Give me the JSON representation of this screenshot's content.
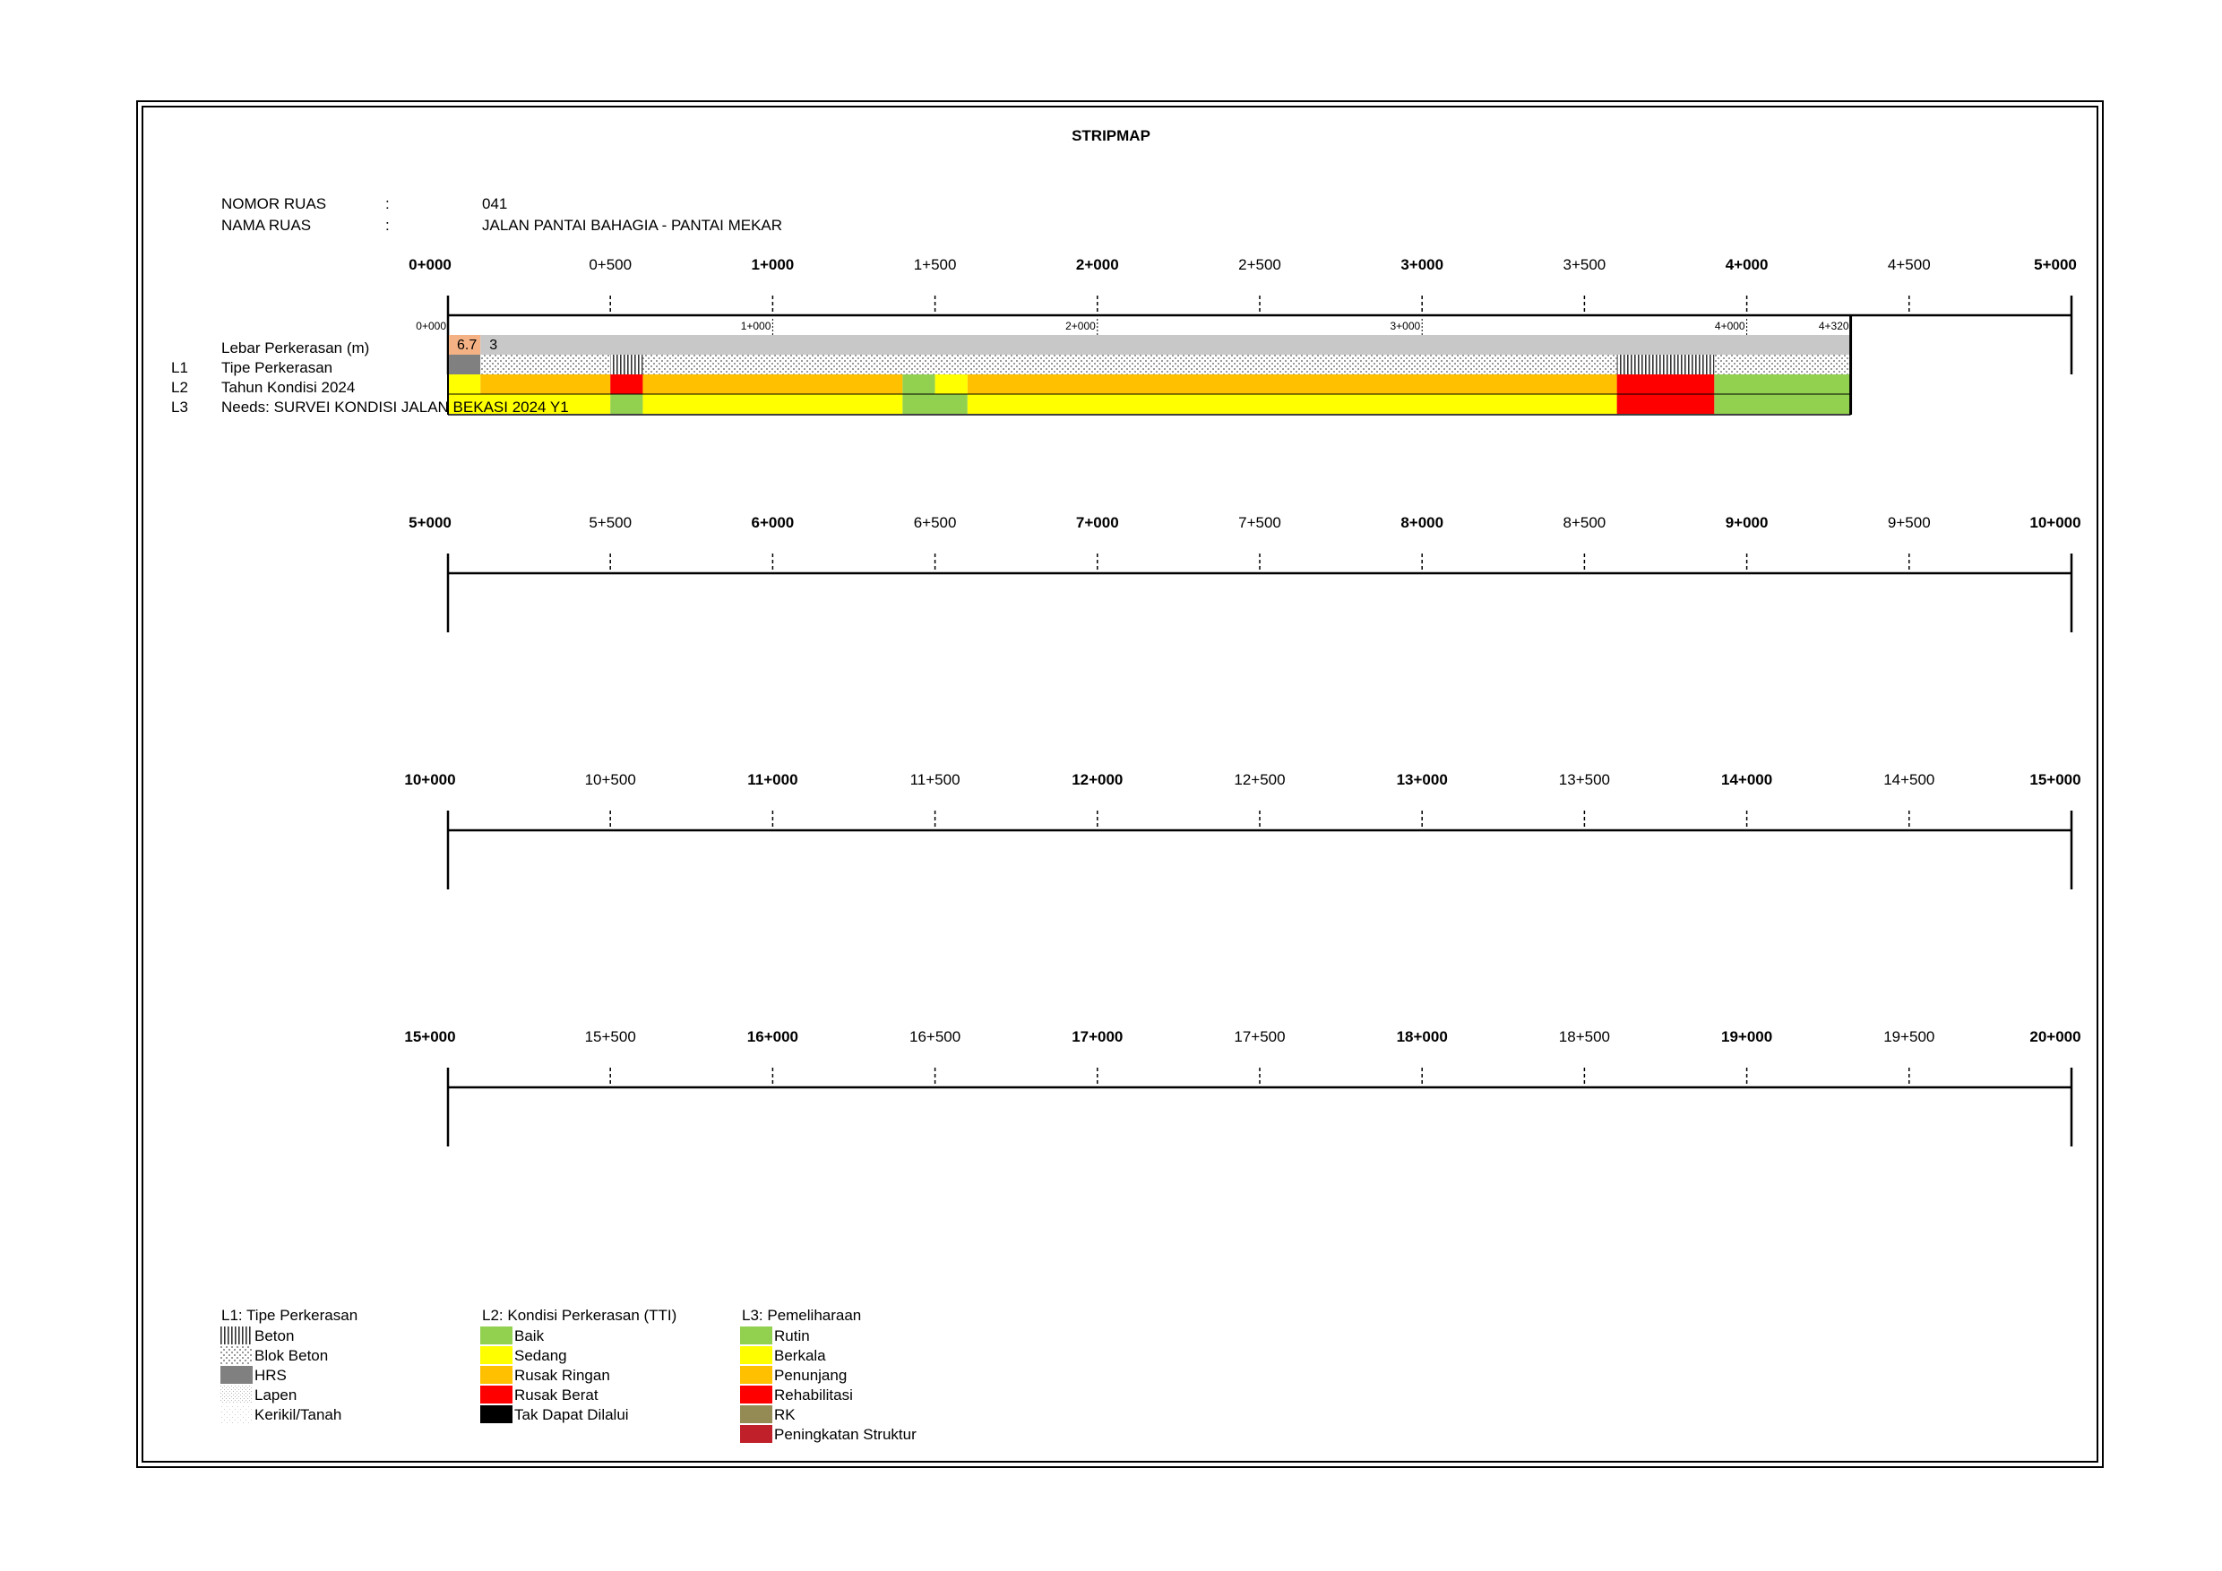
{
  "title": "STRIPMAP",
  "info": {
    "nomor_label": "NOMOR RUAS",
    "nomor_colon": ":",
    "nomor_value": "041",
    "nama_label": "NAMA RUAS",
    "nama_colon": ":",
    "nama_value": "JALAN PANTAI BAHAGIA - PANTAI MEKAR"
  },
  "strips": [
    {
      "labels": [
        "0+000",
        "0+500",
        "1+000",
        "1+500",
        "2+000",
        "2+500",
        "3+000",
        "3+500",
        "4+000",
        "4+500",
        "5+000"
      ]
    },
    {
      "labels": [
        "5+000",
        "5+500",
        "6+000",
        "6+500",
        "7+000",
        "7+500",
        "8+000",
        "8+500",
        "9+000",
        "9+500",
        "10+000"
      ]
    },
    {
      "labels": [
        "10+000",
        "10+500",
        "11+000",
        "11+500",
        "12+000",
        "12+500",
        "13+000",
        "13+500",
        "14+000",
        "14+500",
        "15+000"
      ]
    },
    {
      "labels": [
        "15+000",
        "15+500",
        "16+000",
        "16+500",
        "17+000",
        "17+500",
        "18+000",
        "18+500",
        "19+000",
        "19+500",
        "20+000"
      ]
    }
  ],
  "road": {
    "length_km": 4.32,
    "sub_labels": [
      {
        "km": 0,
        "text": "0+000"
      },
      {
        "km": 1,
        "text": "1+000"
      },
      {
        "km": 2,
        "text": "2+000"
      },
      {
        "km": 3,
        "text": "3+000"
      },
      {
        "km": 4,
        "text": "4+000"
      },
      {
        "km": 4.32,
        "text": "4+320"
      }
    ],
    "row_labels": {
      "lebar": "Lebar Perkerasan (m)",
      "l1_code": "L1",
      "l1": "Tipe Perkerasan",
      "l2_code": "L2",
      "l2": "Tahun Kondisi 2024",
      "l3_code": "L3",
      "l3": "Needs: SURVEI KONDISI JALAN BEKASI 2024 Y1"
    },
    "lebar": [
      {
        "from": 0,
        "to": 0.1,
        "value": "6.7",
        "color": "#f4b183"
      },
      {
        "from": 0.1,
        "to": 4.32,
        "value": "3",
        "color": "#c8c8c8"
      }
    ],
    "l1": [
      {
        "from": 0,
        "to": 0.1,
        "type": "HRS"
      },
      {
        "from": 0.1,
        "to": 0.5,
        "type": "Blok Beton"
      },
      {
        "from": 0.5,
        "to": 0.6,
        "type": "Beton"
      },
      {
        "from": 0.6,
        "to": 3.6,
        "type": "Blok Beton"
      },
      {
        "from": 3.6,
        "to": 3.9,
        "type": "Beton"
      },
      {
        "from": 3.9,
        "to": 4.32,
        "type": "Blok Beton"
      }
    ],
    "l2": [
      {
        "from": 0,
        "to": 0.1,
        "color": "#ffff00"
      },
      {
        "from": 0.1,
        "to": 0.5,
        "color": "#ffc000"
      },
      {
        "from": 0.5,
        "to": 0.6,
        "color": "#ff0000"
      },
      {
        "from": 0.6,
        "to": 1.4,
        "color": "#ffc000"
      },
      {
        "from": 1.4,
        "to": 1.5,
        "color": "#92d050"
      },
      {
        "from": 1.5,
        "to": 1.6,
        "color": "#ffff00"
      },
      {
        "from": 1.6,
        "to": 3.6,
        "color": "#ffc000"
      },
      {
        "from": 3.6,
        "to": 3.9,
        "color": "#ff0000"
      },
      {
        "from": 3.9,
        "to": 4.32,
        "color": "#92d050"
      }
    ],
    "l3": [
      {
        "from": 0,
        "to": 0.5,
        "color": "#ffff00"
      },
      {
        "from": 0.5,
        "to": 0.6,
        "color": "#92d050"
      },
      {
        "from": 0.6,
        "to": 1.4,
        "color": "#ffff00"
      },
      {
        "from": 1.4,
        "to": 1.6,
        "color": "#92d050"
      },
      {
        "from": 1.6,
        "to": 3.6,
        "color": "#ffff00"
      },
      {
        "from": 3.6,
        "to": 3.9,
        "color": "#ff0000"
      },
      {
        "from": 3.9,
        "to": 4.32,
        "color": "#92d050"
      }
    ]
  },
  "legend": {
    "l1": {
      "title": "L1: Tipe Perkerasan",
      "items": [
        {
          "label": "Beton",
          "pattern": "beton"
        },
        {
          "label": "Blok Beton",
          "pattern": "blok"
        },
        {
          "label": "HRS",
          "pattern": "hrs"
        },
        {
          "label": "Lapen",
          "pattern": "lapen"
        },
        {
          "label": "Kerikil/Tanah",
          "pattern": "kerikil"
        }
      ]
    },
    "l2": {
      "title": "L2: Kondisi Perkerasan (TTI)",
      "items": [
        {
          "label": "Baik",
          "color": "#92d050"
        },
        {
          "label": "Sedang",
          "color": "#ffff00"
        },
        {
          "label": "Rusak Ringan",
          "color": "#ffc000"
        },
        {
          "label": "Rusak Berat",
          "color": "#ff0000"
        },
        {
          "label": "Tak Dapat Dilalui",
          "color": "#000000"
        }
      ]
    },
    "l3": {
      "title": "L3: Pemeliharaan",
      "items": [
        {
          "label": "Rutin",
          "color": "#92d050"
        },
        {
          "label": "Berkala",
          "color": "#ffff00"
        },
        {
          "label": "Penunjang",
          "color": "#ffc000"
        },
        {
          "label": "Rehabilitasi",
          "color": "#ff0000"
        },
        {
          "label": "RK",
          "color": "#948a54"
        },
        {
          "label": "Peningkatan Struktur",
          "color": "#c0202a"
        }
      ]
    }
  }
}
